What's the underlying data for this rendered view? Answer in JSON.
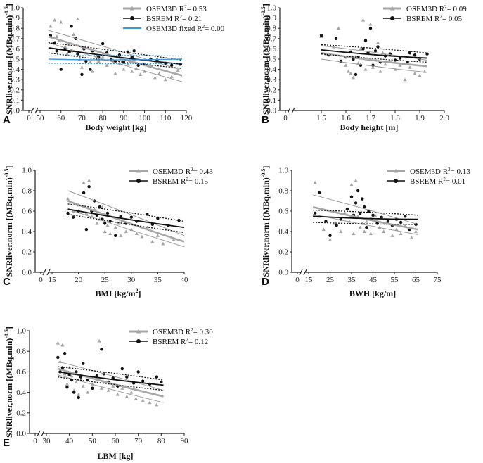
{
  "colors": {
    "osem_color": "#a6a6a6",
    "bsrem_color": "#111111",
    "fixed_color": "#3a9ad9"
  },
  "chart_data": [
    {
      "type": "scatter",
      "panel": "A",
      "xlabel": "Body weight [kg]",
      "ylabel": "SNRliver,norm [(MBq.min)",
      "ylabel_sup": "-0.5",
      "ylabel_end": "]",
      "xlim": [
        50,
        120
      ],
      "ylim": [
        0,
        1
      ],
      "xticks": [
        "0",
        "50",
        "60",
        "70",
        "80",
        "90",
        "100",
        "110",
        "120"
      ],
      "yticks": [
        "0.0",
        "0.1",
        "0.2",
        "0.3",
        "0.4",
        "0.5",
        "0.6",
        "0.7",
        "0.8",
        "0.9",
        "1.0"
      ],
      "legend": [
        {
          "name": "OSEM3D",
          "r2": "= 0.53",
          "color": "#a6a6a6",
          "marker": "triangle"
        },
        {
          "name": "BSREM",
          "r2": "= 0.21",
          "color": "#111111",
          "marker": "circle"
        },
        {
          "name": "OSEM3D fixed",
          "r2": "= 0.00",
          "color": "#3a9ad9",
          "marker": "line"
        }
      ],
      "fits": [
        {
          "series": "OSEM3D",
          "x": [
            54,
            118
          ],
          "y": [
            0.72,
            0.34
          ],
          "ci_upper": [
            0.78,
            0.39
          ],
          "ci_lower": [
            0.66,
            0.28
          ]
        },
        {
          "series": "BSREM",
          "x": [
            54,
            118
          ],
          "y": [
            0.61,
            0.45
          ],
          "ci_upper": [
            0.66,
            0.49
          ],
          "ci_lower": [
            0.56,
            0.41
          ]
        },
        {
          "series": "OSEM3D fixed",
          "x": [
            54,
            118
          ],
          "y": [
            0.5,
            0.5
          ],
          "ci_upper": [
            0.53,
            0.53
          ],
          "ci_lower": [
            0.46,
            0.46
          ]
        }
      ],
      "series": [
        {
          "name": "OSEM3D",
          "x": [
            55,
            57,
            58,
            59,
            60,
            62,
            63,
            65,
            66,
            68,
            69,
            70,
            72,
            73,
            74,
            75,
            77,
            78,
            80,
            82,
            85,
            86,
            88,
            90,
            92,
            94,
            95,
            96,
            98,
            100,
            103,
            105,
            107,
            110,
            113,
            116
          ],
          "y": [
            0.82,
            0.88,
            0.72,
            0.68,
            0.86,
            0.62,
            0.55,
            0.58,
            0.74,
            0.89,
            0.5,
            0.42,
            0.56,
            0.61,
            0.47,
            0.38,
            0.53,
            0.48,
            0.52,
            0.44,
            0.49,
            0.36,
            0.46,
            0.4,
            0.45,
            0.38,
            0.5,
            0.41,
            0.35,
            0.38,
            0.44,
            0.32,
            0.36,
            0.3,
            0.33,
            0.39
          ]
        },
        {
          "name": "BSREM",
          "x": [
            55,
            57,
            58,
            60,
            62,
            64,
            65,
            67,
            68,
            70,
            71,
            72,
            74,
            75,
            78,
            80,
            82,
            84,
            86,
            88,
            90,
            92,
            94,
            95,
            97,
            100,
            103,
            106,
            110,
            113,
            117
          ],
          "y": [
            0.73,
            0.66,
            0.58,
            0.4,
            0.6,
            0.57,
            0.82,
            0.7,
            0.55,
            0.35,
            0.6,
            0.48,
            0.4,
            0.58,
            0.52,
            0.65,
            0.56,
            0.5,
            0.48,
            0.54,
            0.47,
            0.57,
            0.52,
            0.58,
            0.44,
            0.45,
            0.5,
            0.49,
            0.46,
            0.44,
            0.45
          ]
        }
      ]
    },
    {
      "type": "scatter",
      "panel": "B",
      "xlabel": "Body height [m]",
      "ylabel": "SNRliver,norm [(MBq.min)",
      "ylabel_sup": "-0.5",
      "ylabel_end": "]",
      "xlim": [
        1.4,
        2.0
      ],
      "ylim": [
        0,
        1
      ],
      "xticks": [
        "0",
        "1.5",
        "1.6",
        "1.7",
        "1.8",
        "1.9",
        "2.0"
      ],
      "xtick_values": [
        1.5,
        1.6,
        1.7,
        1.8,
        1.9,
        2.0
      ],
      "yticks": [
        "0.0",
        "0.1",
        "0.2",
        "0.3",
        "0.4",
        "0.5",
        "0.6",
        "0.7",
        "0.8",
        "0.9",
        "1.0"
      ],
      "legend": [
        {
          "name": "OSEM3D",
          "r2": "= 0.09",
          "color": "#a6a6a6",
          "marker": "triangle"
        },
        {
          "name": "BSREM",
          "r2": "= 0.05",
          "color": "#111111",
          "marker": "circle"
        }
      ],
      "fits": [
        {
          "series": "OSEM3D",
          "x": [
            1.5,
            1.93
          ],
          "y": [
            0.56,
            0.43
          ],
          "ci_upper": [
            0.63,
            0.49
          ],
          "ci_lower": [
            0.5,
            0.37
          ]
        },
        {
          "series": "BSREM",
          "x": [
            1.5,
            1.93
          ],
          "y": [
            0.59,
            0.51
          ],
          "ci_upper": [
            0.64,
            0.56
          ],
          "ci_lower": [
            0.55,
            0.47
          ]
        }
      ],
      "series": [
        {
          "name": "OSEM3D",
          "x": [
            1.5,
            1.52,
            1.55,
            1.57,
            1.58,
            1.6,
            1.61,
            1.62,
            1.63,
            1.64,
            1.65,
            1.66,
            1.67,
            1.68,
            1.7,
            1.71,
            1.72,
            1.73,
            1.74,
            1.75,
            1.76,
            1.78,
            1.8,
            1.82,
            1.84,
            1.86,
            1.88,
            1.9,
            1.92
          ],
          "y": [
            0.72,
            0.55,
            0.62,
            0.8,
            0.48,
            0.44,
            0.38,
            0.36,
            0.32,
            0.52,
            0.46,
            0.6,
            0.88,
            0.4,
            0.84,
            0.42,
            0.5,
            0.66,
            0.38,
            0.56,
            0.45,
            0.48,
            0.4,
            0.44,
            0.3,
            0.42,
            0.36,
            0.34,
            0.38
          ]
        },
        {
          "name": "BSREM",
          "x": [
            1.5,
            1.53,
            1.56,
            1.58,
            1.6,
            1.62,
            1.63,
            1.64,
            1.65,
            1.66,
            1.67,
            1.68,
            1.69,
            1.7,
            1.71,
            1.72,
            1.73,
            1.74,
            1.76,
            1.78,
            1.8,
            1.82,
            1.85,
            1.86,
            1.88,
            1.9,
            1.93
          ],
          "y": [
            0.73,
            0.54,
            0.7,
            0.48,
            0.52,
            0.57,
            0.5,
            0.35,
            0.52,
            0.44,
            0.6,
            0.68,
            0.56,
            0.8,
            0.44,
            0.58,
            0.62,
            0.47,
            0.53,
            0.55,
            0.49,
            0.51,
            0.47,
            0.56,
            0.54,
            0.5,
            0.55
          ]
        }
      ]
    },
    {
      "type": "scatter",
      "panel": "C",
      "xlabel": "BMI [kg/m",
      "xlabel_sup": "2",
      "xlabel_end": "]",
      "ylabel": "SNRliver,norm [(MBq.min)",
      "ylabel_sup": "-0.5",
      "ylabel_end": "]",
      "xlim": [
        15,
        40
      ],
      "ylim": [
        0,
        1
      ],
      "xticks": [
        "0",
        "15",
        "20",
        "25",
        "30",
        "35",
        "40"
      ],
      "xtick_values": [
        15,
        20,
        25,
        30,
        35,
        40
      ],
      "yticks": [
        "0.0",
        "0.2",
        "0.4",
        "0.6",
        "0.8",
        "1.0"
      ],
      "legend": [
        {
          "name": "OSEM3D",
          "r2": "= 0.43",
          "color": "#a6a6a6",
          "marker": "triangle"
        },
        {
          "name": "BSREM",
          "r2": "= 0.15",
          "color": "#111111",
          "marker": "circle"
        }
      ],
      "fits": [
        {
          "series": "OSEM3D",
          "x": [
            18,
            40
          ],
          "y": [
            0.7,
            0.3
          ],
          "ci_upper": [
            0.8,
            0.36
          ],
          "ci_lower": [
            0.62,
            0.25
          ]
        },
        {
          "series": "BSREM",
          "x": [
            18,
            40
          ],
          "y": [
            0.62,
            0.44
          ],
          "ci_upper": [
            0.67,
            0.5
          ],
          "ci_lower": [
            0.57,
            0.39
          ]
        }
      ],
      "series": [
        {
          "name": "OSEM3D",
          "x": [
            18,
            19,
            20,
            21,
            21.5,
            22,
            22.5,
            23,
            23.5,
            24,
            24.5,
            25,
            25.5,
            26,
            27,
            27.5,
            28,
            29,
            30,
            31,
            32,
            33,
            34,
            35,
            36,
            38
          ],
          "y": [
            0.72,
            0.6,
            0.66,
            0.88,
            0.58,
            0.9,
            0.55,
            0.62,
            0.48,
            0.52,
            0.64,
            0.4,
            0.46,
            0.38,
            0.44,
            0.48,
            0.36,
            0.4,
            0.42,
            0.38,
            0.35,
            0.44,
            0.3,
            0.36,
            0.28,
            0.32
          ]
        },
        {
          "name": "BSREM",
          "x": [
            18,
            19,
            20,
            21,
            21.5,
            22,
            22.5,
            23,
            23.5,
            24,
            24.5,
            25,
            25.5,
            26,
            27,
            28,
            29,
            30,
            31,
            33,
            34,
            35,
            37,
            39
          ],
          "y": [
            0.58,
            0.54,
            0.6,
            0.78,
            0.42,
            0.84,
            0.6,
            0.7,
            0.56,
            0.64,
            0.52,
            0.48,
            0.58,
            0.5,
            0.36,
            0.55,
            0.48,
            0.54,
            0.5,
            0.57,
            0.47,
            0.53,
            0.46,
            0.51
          ]
        }
      ]
    },
    {
      "type": "scatter",
      "panel": "D",
      "xlabel": "BWH [kg/m]",
      "ylabel": "SNRliver,norm [(MBq.min)",
      "ylabel_sup": "-0.5",
      "ylabel_end": "]",
      "xlim": [
        15,
        75
      ],
      "ylim": [
        0,
        1
      ],
      "xticks": [
        "0",
        "15",
        "25",
        "35",
        "45",
        "55",
        "65",
        "75"
      ],
      "xtick_values": [
        15,
        25,
        35,
        45,
        55,
        65,
        75
      ],
      "yticks": [
        "0.0",
        "0.2",
        "0.4",
        "0.6",
        "0.8",
        "1.0"
      ],
      "legend": [
        {
          "name": "OSEM3D",
          "r2": "= 0.13",
          "color": "#a6a6a6",
          "marker": "triangle"
        },
        {
          "name": "BSREM",
          "r2": "= 0.01",
          "color": "#111111",
          "marker": "circle"
        }
      ],
      "fits": [
        {
          "series": "OSEM3D",
          "x": [
            17,
            66
          ],
          "y": [
            0.64,
            0.42
          ],
          "ci_upper": [
            0.76,
            0.47
          ],
          "ci_lower": [
            0.57,
            0.37
          ]
        },
        {
          "series": "BSREM",
          "x": [
            17,
            66
          ],
          "y": [
            0.55,
            0.52
          ],
          "ci_upper": [
            0.61,
            0.56
          ],
          "ci_lower": [
            0.49,
            0.47
          ]
        }
      ],
      "series": [
        {
          "name": "OSEM3D",
          "x": [
            18,
            20,
            22,
            25,
            27,
            30,
            32,
            34,
            35,
            36,
            37,
            38,
            39,
            40,
            41,
            42,
            44,
            46,
            48,
            50,
            52,
            54,
            56,
            58,
            60,
            63,
            65
          ],
          "y": [
            0.88,
            0.55,
            0.42,
            0.32,
            0.48,
            0.4,
            0.58,
            0.5,
            0.86,
            0.38,
            0.9,
            0.55,
            0.44,
            0.48,
            0.4,
            0.5,
            0.38,
            0.56,
            0.44,
            0.4,
            0.48,
            0.36,
            0.42,
            0.38,
            0.46,
            0.34,
            0.4
          ]
        },
        {
          "name": "BSREM",
          "x": [
            18,
            20,
            23,
            25,
            28,
            30,
            33,
            35,
            36,
            37,
            38,
            39,
            40,
            41,
            42,
            43,
            44,
            45,
            47,
            49,
            52,
            54,
            56,
            58,
            60,
            62,
            65
          ],
          "y": [
            0.58,
            0.78,
            0.5,
            0.36,
            0.46,
            0.52,
            0.62,
            0.74,
            0.56,
            0.68,
            0.8,
            0.58,
            0.72,
            0.64,
            0.44,
            0.6,
            0.52,
            0.56,
            0.48,
            0.54,
            0.5,
            0.46,
            0.52,
            0.49,
            0.55,
            0.42,
            0.47
          ]
        }
      ]
    },
    {
      "type": "scatter",
      "panel": "E",
      "xlabel": "LBM [kg]",
      "ylabel": "SNRliver,norm [(MBq.min)",
      "ylabel_sup": "-0.5",
      "ylabel_end": "]",
      "xlim": [
        30,
        90
      ],
      "ylim": [
        0,
        1
      ],
      "xticks": [
        "0",
        "30",
        "40",
        "50",
        "60",
        "70",
        "80",
        "90"
      ],
      "xtick_values": [
        30,
        40,
        50,
        60,
        70,
        80,
        90
      ],
      "yticks": [
        "0.0",
        "0.2",
        "0.4",
        "0.6",
        "0.8",
        "1.0"
      ],
      "legend": [
        {
          "name": "OSEM3D",
          "r2": "= 0.30",
          "color": "#a6a6a6",
          "marker": "triangle"
        },
        {
          "name": "BSREM",
          "r2": "= 0.12",
          "color": "#111111",
          "marker": "circle"
        }
      ],
      "fits": [
        {
          "series": "OSEM3D",
          "x": [
            35,
            81
          ],
          "y": [
            0.63,
            0.36
          ],
          "ci_upper": [
            0.7,
            0.42
          ],
          "ci_lower": [
            0.57,
            0.3
          ]
        },
        {
          "series": "BSREM",
          "x": [
            35,
            81
          ],
          "y": [
            0.6,
            0.47
          ],
          "ci_upper": [
            0.65,
            0.52
          ],
          "ci_lower": [
            0.55,
            0.42
          ]
        }
      ],
      "series": [
        {
          "name": "OSEM3D",
          "x": [
            35,
            36,
            37,
            38,
            39,
            40,
            41,
            42,
            43,
            44,
            45,
            46,
            48,
            50,
            52,
            53,
            54,
            55,
            57,
            59,
            61,
            63,
            65,
            67,
            69,
            72,
            75,
            78
          ],
          "y": [
            0.88,
            0.7,
            0.86,
            0.58,
            0.48,
            0.64,
            0.56,
            0.42,
            0.5,
            0.38,
            0.52,
            0.46,
            0.4,
            0.48,
            0.55,
            0.9,
            0.44,
            0.5,
            0.42,
            0.46,
            0.38,
            0.44,
            0.36,
            0.4,
            0.34,
            0.32,
            0.3,
            0.28
          ]
        },
        {
          "name": "BSREM",
          "x": [
            35,
            36,
            37,
            38,
            39,
            40,
            41,
            42,
            43,
            44,
            45,
            46,
            48,
            50,
            52,
            54,
            55,
            57,
            59,
            61,
            63,
            65,
            68,
            70,
            72,
            75,
            78,
            80
          ],
          "y": [
            0.74,
            0.6,
            0.64,
            0.78,
            0.45,
            0.57,
            0.52,
            0.4,
            0.6,
            0.35,
            0.55,
            0.68,
            0.52,
            0.44,
            0.56,
            0.82,
            0.58,
            0.5,
            0.54,
            0.46,
            0.63,
            0.55,
            0.49,
            0.6,
            0.51,
            0.48,
            0.55,
            0.5
          ]
        }
      ]
    }
  ]
}
